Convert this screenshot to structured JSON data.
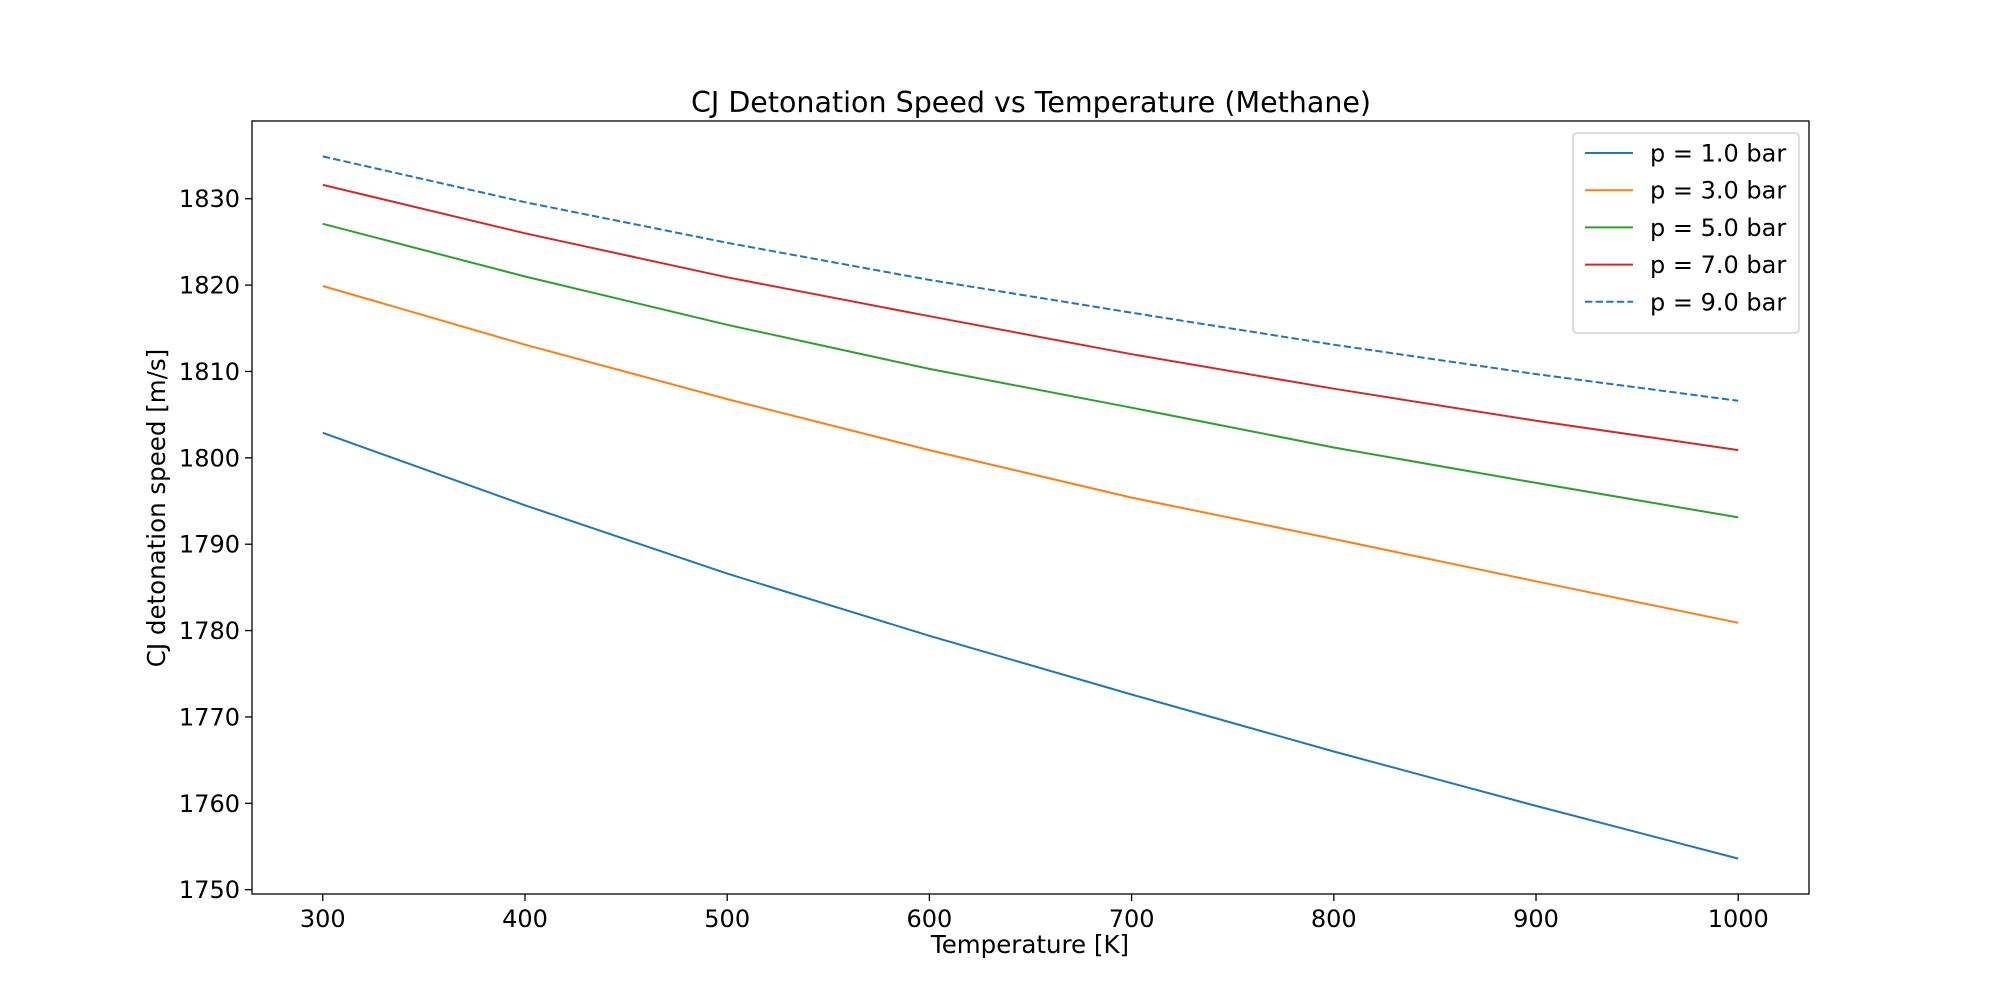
{
  "chart_data": {
    "type": "line",
    "title": "CJ Detonation Speed vs Temperature (Methane)",
    "xlabel": "Temperature [K]",
    "ylabel": "CJ detonation speed [m/s]",
    "xlim": [
      265,
      1035
    ],
    "ylim": [
      1749.5,
      1839
    ],
    "xticks": [
      300,
      400,
      500,
      600,
      700,
      800,
      900,
      1000
    ],
    "yticks": [
      1750,
      1760,
      1770,
      1780,
      1790,
      1800,
      1810,
      1820,
      1830
    ],
    "grid": false,
    "legend_position": "top-right",
    "x": [
      300,
      400,
      500,
      600,
      700,
      800,
      900,
      1000
    ],
    "series": [
      {
        "name": "p = 1.0 bar",
        "color": "#1f77b4",
        "dash": "solid",
        "values": [
          1802.9,
          1794.5,
          1786.6,
          1779.4,
          1772.6,
          1766.0,
          1759.7,
          1753.6
        ]
      },
      {
        "name": "p = 3.0 bar",
        "color": "#ff7f0e",
        "dash": "solid",
        "values": [
          1819.9,
          1813.1,
          1806.8,
          1800.9,
          1795.4,
          1790.6,
          1785.7,
          1780.9
        ]
      },
      {
        "name": "p = 5.0 bar",
        "color": "#2ca02c",
        "dash": "solid",
        "values": [
          1827.1,
          1821.0,
          1815.4,
          1810.3,
          1805.8,
          1801.2,
          1797.1,
          1793.1
        ]
      },
      {
        "name": "p = 7.0 bar",
        "color": "#d62728",
        "dash": "solid",
        "values": [
          1831.6,
          1826.0,
          1820.9,
          1816.4,
          1812.0,
          1808.0,
          1804.3,
          1800.9
        ]
      },
      {
        "name": "p = 9.0 bar",
        "color": "#1f77b4",
        "dash": "dashed",
        "values": [
          1834.9,
          1829.6,
          1824.9,
          1820.6,
          1816.8,
          1813.1,
          1809.7,
          1806.6
        ]
      }
    ]
  }
}
